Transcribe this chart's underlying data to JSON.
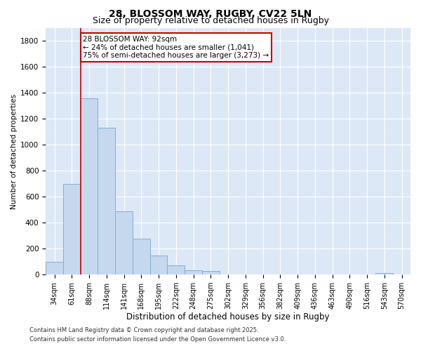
{
  "title1": "28, BLOSSOM WAY, RUGBY, CV22 5LN",
  "title2": "Size of property relative to detached houses in Rugby",
  "xlabel": "Distribution of detached houses by size in Rugby",
  "ylabel": "Number of detached properties",
  "categories": [
    "34sqm",
    "61sqm",
    "88sqm",
    "114sqm",
    "141sqm",
    "168sqm",
    "195sqm",
    "222sqm",
    "248sqm",
    "275sqm",
    "302sqm",
    "329sqm",
    "356sqm",
    "382sqm",
    "409sqm",
    "436sqm",
    "463sqm",
    "490sqm",
    "516sqm",
    "543sqm",
    "570sqm"
  ],
  "values": [
    100,
    700,
    1360,
    1130,
    490,
    275,
    145,
    70,
    35,
    25,
    0,
    0,
    0,
    0,
    0,
    0,
    0,
    0,
    0,
    10,
    0
  ],
  "bar_color": "#c5d8ee",
  "bar_edge_color": "#85afd0",
  "vline_x_index": 2,
  "vline_color": "#cc0000",
  "annotation_line1": "28 BLOSSOM WAY: 92sqm",
  "annotation_line2": "← 24% of detached houses are smaller (1,041)",
  "annotation_line3": "75% of semi-detached houses are larger (3,273) →",
  "footer1": "Contains HM Land Registry data © Crown copyright and database right 2025.",
  "footer2": "Contains public sector information licensed under the Open Government Licence v3.0.",
  "ylim": [
    0,
    1900
  ],
  "yticks": [
    0,
    200,
    400,
    600,
    800,
    1000,
    1200,
    1400,
    1600,
    1800
  ],
  "bg_color": "#dce8f5",
  "fig_bg_color": "#ffffff",
  "title_fontsize": 10,
  "subtitle_fontsize": 9,
  "tick_fontsize": 7,
  "label_fontsize": 8.5,
  "ylabel_fontsize": 7.5,
  "footer_fontsize": 6,
  "ann_fontsize": 7.5
}
